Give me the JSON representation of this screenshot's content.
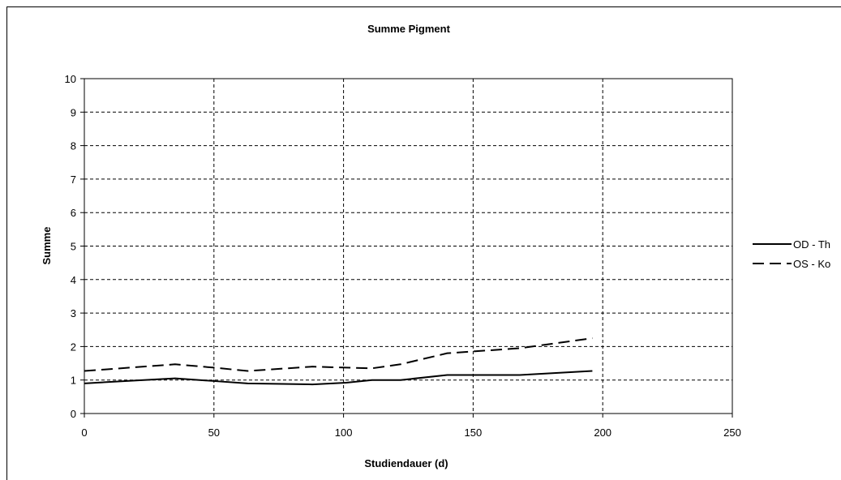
{
  "chart_data": {
    "type": "line",
    "title": "Summe Pigment",
    "xlabel": "Studiendauer (d)",
    "ylabel": "Summe",
    "xlim": [
      0,
      250
    ],
    "ylim": [
      0,
      10
    ],
    "xticks": [
      0,
      50,
      100,
      150,
      200,
      250
    ],
    "yticks": [
      0,
      1,
      2,
      3,
      4,
      5,
      6,
      7,
      8,
      9,
      10
    ],
    "grid": true,
    "legend_position": "right",
    "series": [
      {
        "name": "OD - Th",
        "style": "solid",
        "color": "#000000",
        "x": [
          0,
          35,
          50,
          63,
          88,
          101,
          111,
          122,
          140,
          168,
          196
        ],
        "y": [
          0.9,
          1.05,
          0.97,
          0.9,
          0.87,
          0.92,
          1.0,
          1.0,
          1.15,
          1.15,
          1.27
        ]
      },
      {
        "name": "OS - Ko",
        "style": "dashed",
        "color": "#000000",
        "x": [
          0,
          35,
          50,
          63,
          88,
          101,
          111,
          122,
          140,
          168,
          196
        ],
        "y": [
          1.27,
          1.47,
          1.37,
          1.27,
          1.4,
          1.37,
          1.35,
          1.47,
          1.8,
          1.95,
          2.25
        ]
      }
    ]
  }
}
